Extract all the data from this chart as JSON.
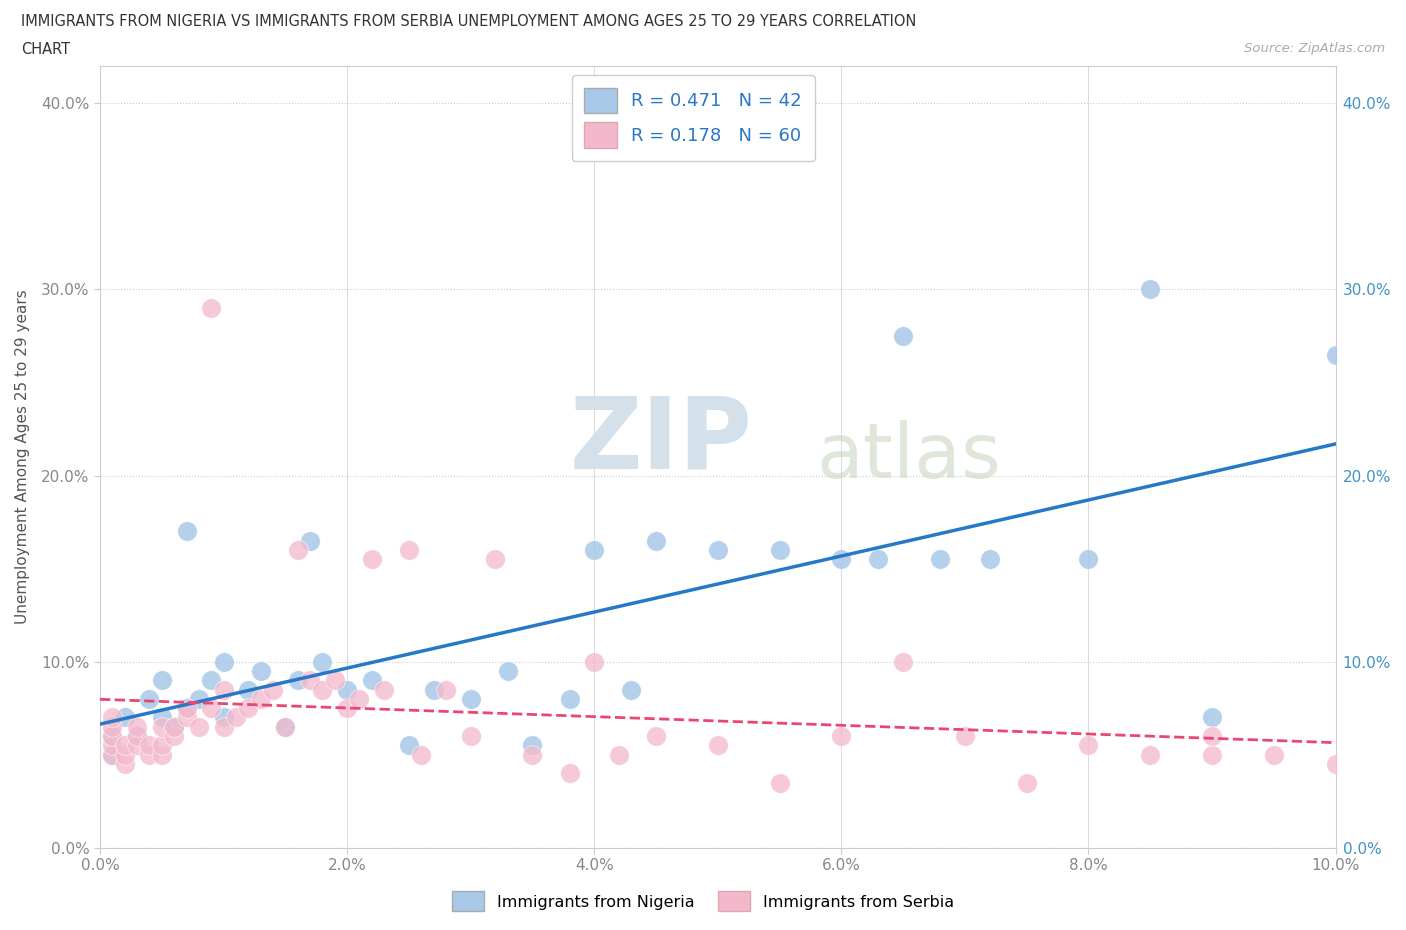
{
  "title_line1": "IMMIGRANTS FROM NIGERIA VS IMMIGRANTS FROM SERBIA UNEMPLOYMENT AMONG AGES 25 TO 29 YEARS CORRELATION",
  "title_line2": "CHART",
  "source_text": "Source: ZipAtlas.com",
  "ylabel": "Unemployment Among Ages 25 to 29 years",
  "xlim": [
    0.0,
    0.1
  ],
  "ylim": [
    0.0,
    0.42
  ],
  "xticks": [
    0.0,
    0.02,
    0.04,
    0.06,
    0.08,
    0.1
  ],
  "yticks": [
    0.0,
    0.1,
    0.2,
    0.3,
    0.4
  ],
  "xtick_labels_bottom": [
    "0.0%",
    "2.0%",
    "4.0%",
    "6.0%",
    "8.0%",
    "10.0%"
  ],
  "ytick_labels_left": [
    "0.0%",
    "10.0%",
    "20.0%",
    "30.0%",
    "40.0%"
  ],
  "ytick_labels_right": [
    "0.0%",
    "10.0%",
    "20.0%",
    "30.0%",
    "40.0%"
  ],
  "nigeria_color": "#a8c8e8",
  "serbia_color": "#f4b8cc",
  "nigeria_line_color": "#2878c8",
  "serbia_line_color": "#e84870",
  "watermark_zip": "ZIP",
  "watermark_atlas": "atlas",
  "nigeria_R": 0.471,
  "nigeria_N": 42,
  "serbia_R": 0.178,
  "serbia_N": 60,
  "nigeria_x": [
    0.001,
    0.001,
    0.002,
    0.003,
    0.004,
    0.005,
    0.005,
    0.006,
    0.007,
    0.007,
    0.008,
    0.009,
    0.01,
    0.01,
    0.012,
    0.013,
    0.015,
    0.016,
    0.017,
    0.018,
    0.02,
    0.022,
    0.025,
    0.027,
    0.03,
    0.033,
    0.035,
    0.038,
    0.04,
    0.043,
    0.045,
    0.05,
    0.055,
    0.06,
    0.063,
    0.065,
    0.068,
    0.072,
    0.08,
    0.085,
    0.09,
    0.1
  ],
  "nigeria_y": [
    0.05,
    0.06,
    0.07,
    0.06,
    0.08,
    0.07,
    0.09,
    0.065,
    0.075,
    0.17,
    0.08,
    0.09,
    0.07,
    0.1,
    0.085,
    0.095,
    0.065,
    0.09,
    0.165,
    0.1,
    0.085,
    0.09,
    0.055,
    0.085,
    0.08,
    0.095,
    0.055,
    0.08,
    0.16,
    0.085,
    0.165,
    0.16,
    0.16,
    0.155,
    0.155,
    0.275,
    0.155,
    0.155,
    0.155,
    0.3,
    0.07,
    0.265
  ],
  "serbia_x": [
    0.001,
    0.001,
    0.001,
    0.001,
    0.001,
    0.002,
    0.002,
    0.002,
    0.003,
    0.003,
    0.003,
    0.004,
    0.004,
    0.005,
    0.005,
    0.005,
    0.006,
    0.006,
    0.007,
    0.007,
    0.008,
    0.009,
    0.009,
    0.01,
    0.01,
    0.011,
    0.012,
    0.013,
    0.014,
    0.015,
    0.016,
    0.017,
    0.018,
    0.019,
    0.02,
    0.021,
    0.022,
    0.023,
    0.025,
    0.026,
    0.028,
    0.03,
    0.032,
    0.035,
    0.038,
    0.04,
    0.042,
    0.045,
    0.05,
    0.055,
    0.06,
    0.065,
    0.07,
    0.075,
    0.08,
    0.085,
    0.09,
    0.09,
    0.095,
    0.1
  ],
  "serbia_y": [
    0.05,
    0.055,
    0.06,
    0.065,
    0.07,
    0.045,
    0.05,
    0.055,
    0.055,
    0.06,
    0.065,
    0.05,
    0.055,
    0.05,
    0.055,
    0.065,
    0.06,
    0.065,
    0.07,
    0.075,
    0.065,
    0.075,
    0.29,
    0.065,
    0.085,
    0.07,
    0.075,
    0.08,
    0.085,
    0.065,
    0.16,
    0.09,
    0.085,
    0.09,
    0.075,
    0.08,
    0.155,
    0.085,
    0.16,
    0.05,
    0.085,
    0.06,
    0.155,
    0.05,
    0.04,
    0.1,
    0.05,
    0.06,
    0.055,
    0.035,
    0.06,
    0.1,
    0.06,
    0.035,
    0.055,
    0.05,
    0.05,
    0.06,
    0.05,
    0.045
  ]
}
